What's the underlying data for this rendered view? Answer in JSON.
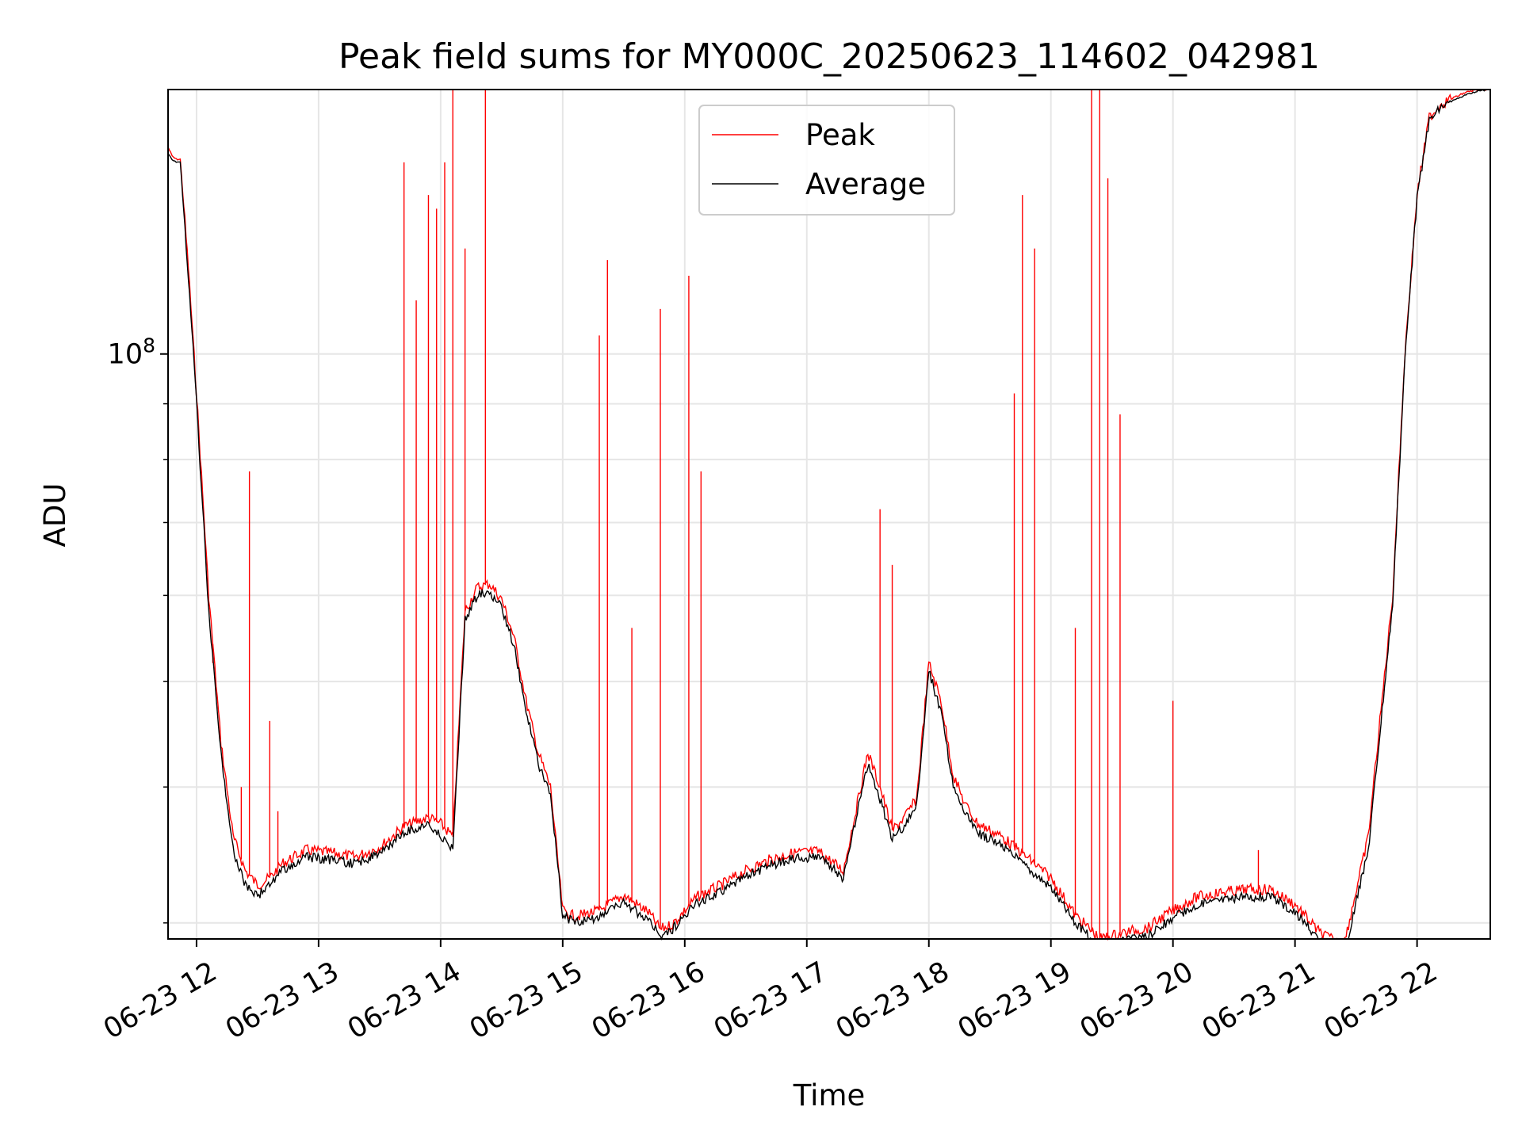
{
  "chart_data": {
    "type": "line",
    "title": "Peak field sums for MY000C_20250623_114602_042981",
    "xlabel": "Time",
    "ylabel": "ADU",
    "y_scale": "log",
    "ylim": [
      29000000,
      175000000
    ],
    "xlim": [
      "2025-06-23 11:46",
      "2025-06-23 22:36"
    ],
    "x_ticks": [
      "06-23 12",
      "06-23 13",
      "06-23 14",
      "06-23 15",
      "06-23 16",
      "06-23 17",
      "06-23 18",
      "06-23 19",
      "06-23 20",
      "06-23 21",
      "06-23 22"
    ],
    "y_ticks": [
      {
        "value": 100000000,
        "base": "10",
        "exp": "8"
      }
    ],
    "grid": true,
    "legend_position": "upper center",
    "colors": {
      "peak": "#ff0000",
      "average": "#000000"
    },
    "series": [
      {
        "name": "Peak",
        "color": "#ff0000",
        "x": [
          "2025-06-23 11:46",
          "2025-06-23 11:48",
          "2025-06-23 11:50",
          "2025-06-23 11:52",
          "2025-06-23 11:56",
          "2025-06-23 12:00",
          "2025-06-23 12:06",
          "2025-06-23 12:12",
          "2025-06-23 12:18",
          "2025-06-23 12:24",
          "2025-06-23 12:30",
          "2025-06-23 12:36",
          "2025-06-23 12:42",
          "2025-06-23 12:54",
          "2025-06-23 13:06",
          "2025-06-23 13:18",
          "2025-06-23 13:30",
          "2025-06-23 13:42",
          "2025-06-23 13:54",
          "2025-06-23 14:00",
          "2025-06-23 14:06",
          "2025-06-23 14:12",
          "2025-06-23 14:18",
          "2025-06-23 14:24",
          "2025-06-23 14:30",
          "2025-06-23 14:36",
          "2025-06-23 14:42",
          "2025-06-23 14:48",
          "2025-06-23 14:54",
          "2025-06-23 15:00",
          "2025-06-23 15:06",
          "2025-06-23 15:18",
          "2025-06-23 15:30",
          "2025-06-23 15:42",
          "2025-06-23 15:48",
          "2025-06-23 15:54",
          "2025-06-23 16:06",
          "2025-06-23 16:18",
          "2025-06-23 16:30",
          "2025-06-23 16:42",
          "2025-06-23 16:54",
          "2025-06-23 17:06",
          "2025-06-23 17:18",
          "2025-06-23 17:30",
          "2025-06-23 17:36",
          "2025-06-23 17:42",
          "2025-06-23 17:48",
          "2025-06-23 17:54",
          "2025-06-23 18:00",
          "2025-06-23 18:06",
          "2025-06-23 18:12",
          "2025-06-23 18:18",
          "2025-06-23 18:24",
          "2025-06-23 18:36",
          "2025-06-23 18:48",
          "2025-06-23 19:00",
          "2025-06-23 19:12",
          "2025-06-23 19:24",
          "2025-06-23 19:36",
          "2025-06-23 19:48",
          "2025-06-23 19:54",
          "2025-06-23 20:00",
          "2025-06-23 20:12",
          "2025-06-23 20:24",
          "2025-06-23 20:36",
          "2025-06-23 20:48",
          "2025-06-23 21:00",
          "2025-06-23 21:12",
          "2025-06-23 21:24",
          "2025-06-23 21:36",
          "2025-06-23 21:48",
          "2025-06-23 21:54",
          "2025-06-23 22:00",
          "2025-06-23 22:06",
          "2025-06-23 22:12",
          "2025-06-23 22:18",
          "2025-06-23 22:24",
          "2025-06-23 22:30",
          "2025-06-23 22:36"
        ],
        "y": [
          155000000,
          152000000,
          151000000,
          151000000,
          120000000,
          92000000,
          60000000,
          44000000,
          36000000,
          33500000,
          32500000,
          33000000,
          34000000,
          35000000,
          34800000,
          34500000,
          35200000,
          36800000,
          37500000,
          37000000,
          36000000,
          58000000,
          61000000,
          61500000,
          59500000,
          55000000,
          48000000,
          43000000,
          40000000,
          30800000,
          30400000,
          30800000,
          31800000,
          30700000,
          29600000,
          29900000,
          31700000,
          32500000,
          33500000,
          34300000,
          34800000,
          34900000,
          33500000,
          43000000,
          40000000,
          36500000,
          37500000,
          39000000,
          52000000,
          48000000,
          41000000,
          38500000,
          37000000,
          36000000,
          34500000,
          33000000,
          30500000,
          29000000,
          29400000,
          29700000,
          30300000,
          30800000,
          31700000,
          32000000,
          32200000,
          32200000,
          31200000,
          29400000,
          28600000,
          36000000,
          60000000,
          100000000,
          140000000,
          165000000,
          170000000,
          172000000,
          174000000,
          175000000,
          175000000
        ]
      },
      {
        "name": "Average",
        "color": "#000000",
        "x": [
          "2025-06-23 11:46",
          "2025-06-23 11:48",
          "2025-06-23 11:50",
          "2025-06-23 11:52",
          "2025-06-23 11:56",
          "2025-06-23 12:00",
          "2025-06-23 12:06",
          "2025-06-23 12:12",
          "2025-06-23 12:18",
          "2025-06-23 12:24",
          "2025-06-23 12:30",
          "2025-06-23 12:36",
          "2025-06-23 12:42",
          "2025-06-23 12:54",
          "2025-06-23 13:06",
          "2025-06-23 13:18",
          "2025-06-23 13:30",
          "2025-06-23 13:42",
          "2025-06-23 13:54",
          "2025-06-23 14:00",
          "2025-06-23 14:06",
          "2025-06-23 14:12",
          "2025-06-23 14:18",
          "2025-06-23 14:24",
          "2025-06-23 14:30",
          "2025-06-23 14:36",
          "2025-06-23 14:42",
          "2025-06-23 14:48",
          "2025-06-23 14:54",
          "2025-06-23 15:00",
          "2025-06-23 15:06",
          "2025-06-23 15:18",
          "2025-06-23 15:30",
          "2025-06-23 15:42",
          "2025-06-23 15:48",
          "2025-06-23 15:54",
          "2025-06-23 16:06",
          "2025-06-23 16:18",
          "2025-06-23 16:30",
          "2025-06-23 16:42",
          "2025-06-23 16:54",
          "2025-06-23 17:06",
          "2025-06-23 17:18",
          "2025-06-23 17:30",
          "2025-06-23 17:36",
          "2025-06-23 17:42",
          "2025-06-23 17:48",
          "2025-06-23 17:54",
          "2025-06-23 18:00",
          "2025-06-23 18:06",
          "2025-06-23 18:12",
          "2025-06-23 18:18",
          "2025-06-23 18:24",
          "2025-06-23 18:36",
          "2025-06-23 18:48",
          "2025-06-23 19:00",
          "2025-06-23 19:12",
          "2025-06-23 19:24",
          "2025-06-23 19:36",
          "2025-06-23 19:48",
          "2025-06-23 19:54",
          "2025-06-23 20:00",
          "2025-06-23 20:12",
          "2025-06-23 20:24",
          "2025-06-23 20:36",
          "2025-06-23 20:48",
          "2025-06-23 21:00",
          "2025-06-23 21:12",
          "2025-06-23 21:24",
          "2025-06-23 21:36",
          "2025-06-23 21:48",
          "2025-06-23 21:54",
          "2025-06-23 22:00",
          "2025-06-23 22:06",
          "2025-06-23 22:12",
          "2025-06-23 22:18",
          "2025-06-23 22:24",
          "2025-06-23 22:30",
          "2025-06-23 22:36"
        ],
        "y": [
          153000000,
          151000000,
          150000000,
          150000000,
          118000000,
          90000000,
          58000000,
          43000000,
          35000000,
          32500000,
          31800000,
          32500000,
          33500000,
          34500000,
          34300000,
          34000000,
          34700000,
          36300000,
          37000000,
          36000000,
          35000000,
          57000000,
          60000000,
          60500000,
          58500000,
          54000000,
          47000000,
          42000000,
          39500000,
          30500000,
          30000000,
          30400000,
          31300000,
          30200000,
          29200000,
          29600000,
          31300000,
          32100000,
          33100000,
          33900000,
          34400000,
          34500000,
          33000000,
          42000000,
          39000000,
          35800000,
          36800000,
          38500000,
          51000000,
          47000000,
          40000000,
          37800000,
          36300000,
          35300000,
          33800000,
          32400000,
          30000000,
          28500000,
          28900000,
          29200000,
          29800000,
          30300000,
          31200000,
          31500000,
          31700000,
          31700000,
          30700000,
          28900000,
          28000000,
          35000000,
          59000000,
          99000000,
          139000000,
          164000000,
          169000000,
          171000000,
          173000000,
          174500000,
          175000000
        ]
      }
    ],
    "peak_spikes": [
      {
        "x": "2025-06-23 12:08",
        "y": 52000000
      },
      {
        "x": "2025-06-23 12:22",
        "y": 40000000
      },
      {
        "x": "2025-06-23 12:26",
        "y": 78000000
      },
      {
        "x": "2025-06-23 12:36",
        "y": 46000000
      },
      {
        "x": "2025-06-23 12:40",
        "y": 38000000
      },
      {
        "x": "2025-06-23 13:42",
        "y": 150000000
      },
      {
        "x": "2025-06-23 13:48",
        "y": 112000000
      },
      {
        "x": "2025-06-23 13:54",
        "y": 140000000
      },
      {
        "x": "2025-06-23 13:58",
        "y": 136000000
      },
      {
        "x": "2025-06-23 14:02",
        "y": 150000000
      },
      {
        "x": "2025-06-23 14:06",
        "y": 175000000
      },
      {
        "x": "2025-06-23 14:12",
        "y": 125000000
      },
      {
        "x": "2025-06-23 14:22",
        "y": 175000000
      },
      {
        "x": "2025-06-23 15:18",
        "y": 104000000
      },
      {
        "x": "2025-06-23 15:22",
        "y": 122000000
      },
      {
        "x": "2025-06-23 15:34",
        "y": 56000000
      },
      {
        "x": "2025-06-23 15:48",
        "y": 110000000
      },
      {
        "x": "2025-06-23 16:02",
        "y": 118000000
      },
      {
        "x": "2025-06-23 16:08",
        "y": 78000000
      },
      {
        "x": "2025-06-23 17:36",
        "y": 72000000
      },
      {
        "x": "2025-06-23 17:42",
        "y": 64000000
      },
      {
        "x": "2025-06-23 18:42",
        "y": 92000000
      },
      {
        "x": "2025-06-23 18:46",
        "y": 140000000
      },
      {
        "x": "2025-06-23 18:52",
        "y": 125000000
      },
      {
        "x": "2025-06-23 19:12",
        "y": 56000000
      },
      {
        "x": "2025-06-23 19:20",
        "y": 175000000
      },
      {
        "x": "2025-06-23 19:24",
        "y": 175000000
      },
      {
        "x": "2025-06-23 19:28",
        "y": 145000000
      },
      {
        "x": "2025-06-23 19:34",
        "y": 88000000
      },
      {
        "x": "2025-06-23 20:00",
        "y": 48000000
      },
      {
        "x": "2025-06-23 20:42",
        "y": 35000000
      }
    ]
  }
}
